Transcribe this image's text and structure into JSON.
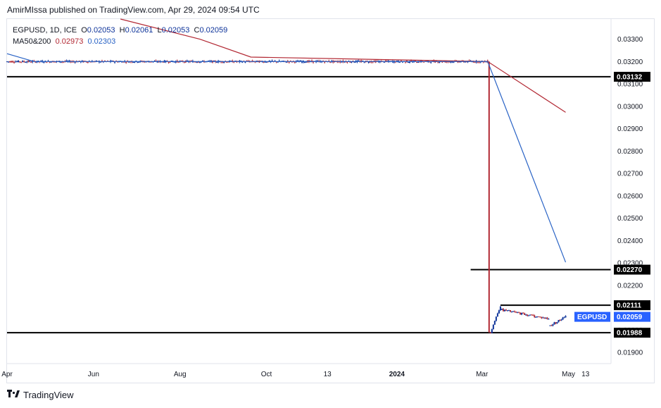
{
  "publisher_line": "AmirMIssa published on TradingView.com, Apr 29, 2024 09:54 UTC",
  "legend": {
    "symbol": "EGPUSD, 1D, ICE",
    "o_label": "O",
    "o_value": "0.02053",
    "h_label": "H",
    "h_value": "0.02061",
    "l_label": "L",
    "l_value": "0.02053",
    "c_label": "C",
    "c_value": "0.02059",
    "ma_label": "MA50&200",
    "ma50_value": "0.02973",
    "ma200_value": "0.02303"
  },
  "footer": {
    "brand": "TradingView"
  },
  "colors": {
    "up": "#0c3299",
    "down": "#b22833",
    "ma50": "#b22833",
    "ma200": "#2862c5",
    "level_line": "#000000",
    "price_tag": "#2962ff",
    "level_tag": "#000000"
  },
  "chart_data": {
    "type": "candlestick",
    "y_axis": {
      "range": [
        0.0185,
        0.0339
      ],
      "ticks": [
        "0.03300",
        "0.03200",
        "0.03100",
        "0.03000",
        "0.02900",
        "0.02800",
        "0.02700",
        "0.02600",
        "0.02500",
        "0.02400",
        "0.02300",
        "0.02200",
        "0.02100",
        "0.02000",
        "0.01900"
      ],
      "position": "right"
    },
    "x_axis": {
      "labels": [
        {
          "text": "Apr",
          "date": "2023-04-01"
        },
        {
          "text": "Jun",
          "date": "2023-06-01"
        },
        {
          "text": "Aug",
          "date": "2023-08-01"
        },
        {
          "text": "Oct",
          "date": "2023-10-01"
        },
        {
          "text": "13",
          "date": "2023-11-13"
        },
        {
          "text": "2024",
          "date": "2024-01-01",
          "bold": true
        },
        {
          "text": "Mar",
          "date": "2024-03-01"
        },
        {
          "text": "May",
          "date": "2024-05-01"
        },
        {
          "text": "13",
          "date": "2024-05-13"
        }
      ],
      "range": [
        "2023-04-01",
        "2024-05-31"
      ]
    },
    "candles_summary": [
      {
        "from": "2023-04-01",
        "to": "2024-03-05",
        "price": 0.032,
        "note": "flat"
      },
      {
        "date": "2024-03-06",
        "open": 0.032,
        "high": 0.032,
        "low": 0.01988,
        "close": 0.0199
      },
      {
        "from": "2024-03-07",
        "to": "2024-03-14",
        "start": 0.0199,
        "end": 0.0211
      },
      {
        "from": "2024-03-15",
        "to": "2024-04-17",
        "start": 0.0209,
        "end": 0.0205
      },
      {
        "from": "2024-04-18",
        "to": "2024-04-29",
        "start": 0.0202,
        "end": 0.02059
      }
    ],
    "series": [
      {
        "name": "MA50",
        "points": [
          {
            "date": "2023-06-20",
            "value": 0.0339
          },
          {
            "date": "2023-08-15",
            "value": 0.033
          },
          {
            "date": "2023-09-20",
            "value": 0.0322
          },
          {
            "date": "2024-03-05",
            "value": 0.032
          },
          {
            "date": "2024-04-29",
            "value": 0.02973
          }
        ]
      },
      {
        "name": "MA200",
        "points": [
          {
            "date": "2023-04-01",
            "value": 0.03235
          },
          {
            "date": "2023-04-20",
            "value": 0.032
          },
          {
            "date": "2024-03-05",
            "value": 0.032
          },
          {
            "date": "2024-04-29",
            "value": 0.02303
          }
        ]
      }
    ],
    "horizontal_levels": [
      {
        "value": 0.03132,
        "label": "0.03132",
        "from": "2023-04-01",
        "to": "2024-05-31"
      },
      {
        "value": 0.0227,
        "label": "0.02270",
        "from": "2024-02-22",
        "to": "2024-05-31"
      },
      {
        "value": 0.02111,
        "label": "0.02111",
        "from": "2024-03-14",
        "to": "2024-05-31"
      },
      {
        "value": 0.01988,
        "label": "0.01988",
        "from": "2023-04-01",
        "to": "2024-05-31"
      }
    ],
    "last_price": {
      "symbol": "EGPUSD",
      "value": 0.02059,
      "label": "0.02059"
    },
    "grid": false,
    "legend_placement": "top-left"
  }
}
